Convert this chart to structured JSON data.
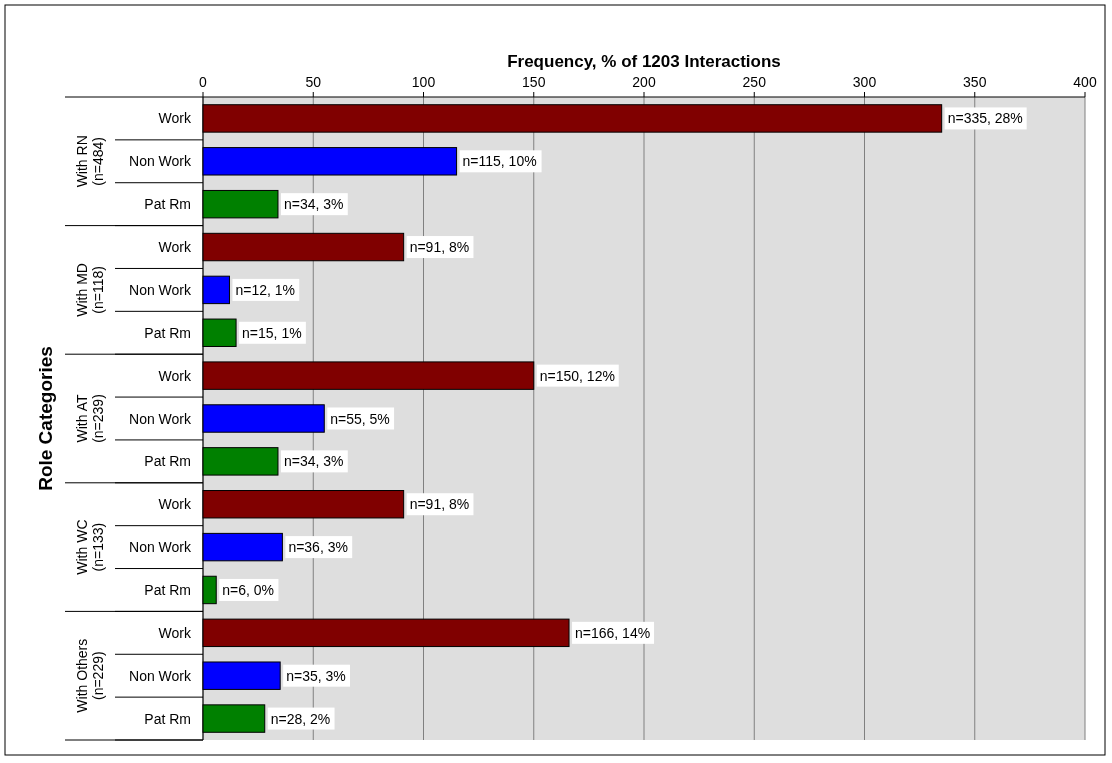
{
  "chart_data": {
    "type": "bar",
    "orientation": "horizontal",
    "xlabel": "Frequency, % of 1203 Interactions",
    "ylabel": "Role Categories",
    "categories": [
      "Work",
      "Non Work",
      "Pat Rm",
      "Work",
      "Non Work",
      "Pat Rm",
      "Work",
      "Non Work",
      "Pat Rm",
      "Work",
      "Non Work",
      "Pat Rm",
      "Work",
      "Non Work",
      "Pat Rm"
    ],
    "values": [
      335,
      115,
      34,
      91,
      12,
      15,
      150,
      55,
      34,
      91,
      36,
      6,
      166,
      35,
      28
    ],
    "colors": [
      "#800000",
      "#0000ff",
      "#008000",
      "#800000",
      "#0000ff",
      "#008000",
      "#800000",
      "#0000ff",
      "#008000",
      "#800000",
      "#0000ff",
      "#008000",
      "#800000",
      "#0000ff",
      "#008000"
    ],
    "value_labels": [
      "n=335, 28%",
      "n=115, 10%",
      "n=34, 3%",
      "n=91, 8%",
      "n=12, 1%",
      "n=15, 1%",
      "n=150, 12%",
      "n=55, 5%",
      "n=34, 3%",
      "n=91, 8%",
      "n=36, 3%",
      "n=6, 0%",
      "n=166, 14%",
      "n=35, 3%",
      "n=28, 2%"
    ],
    "annotations": [
      "With RN\n(n=484)",
      "With MD\n(n=118)",
      "With AT\n(n=239)",
      "With WC\n(n=133)",
      "With Others\n(n=229)"
    ],
    "xlim": [
      0,
      400
    ],
    "xticks": [
      0,
      50,
      100,
      150,
      200,
      250,
      300,
      350,
      400
    ],
    "grid": "x"
  }
}
